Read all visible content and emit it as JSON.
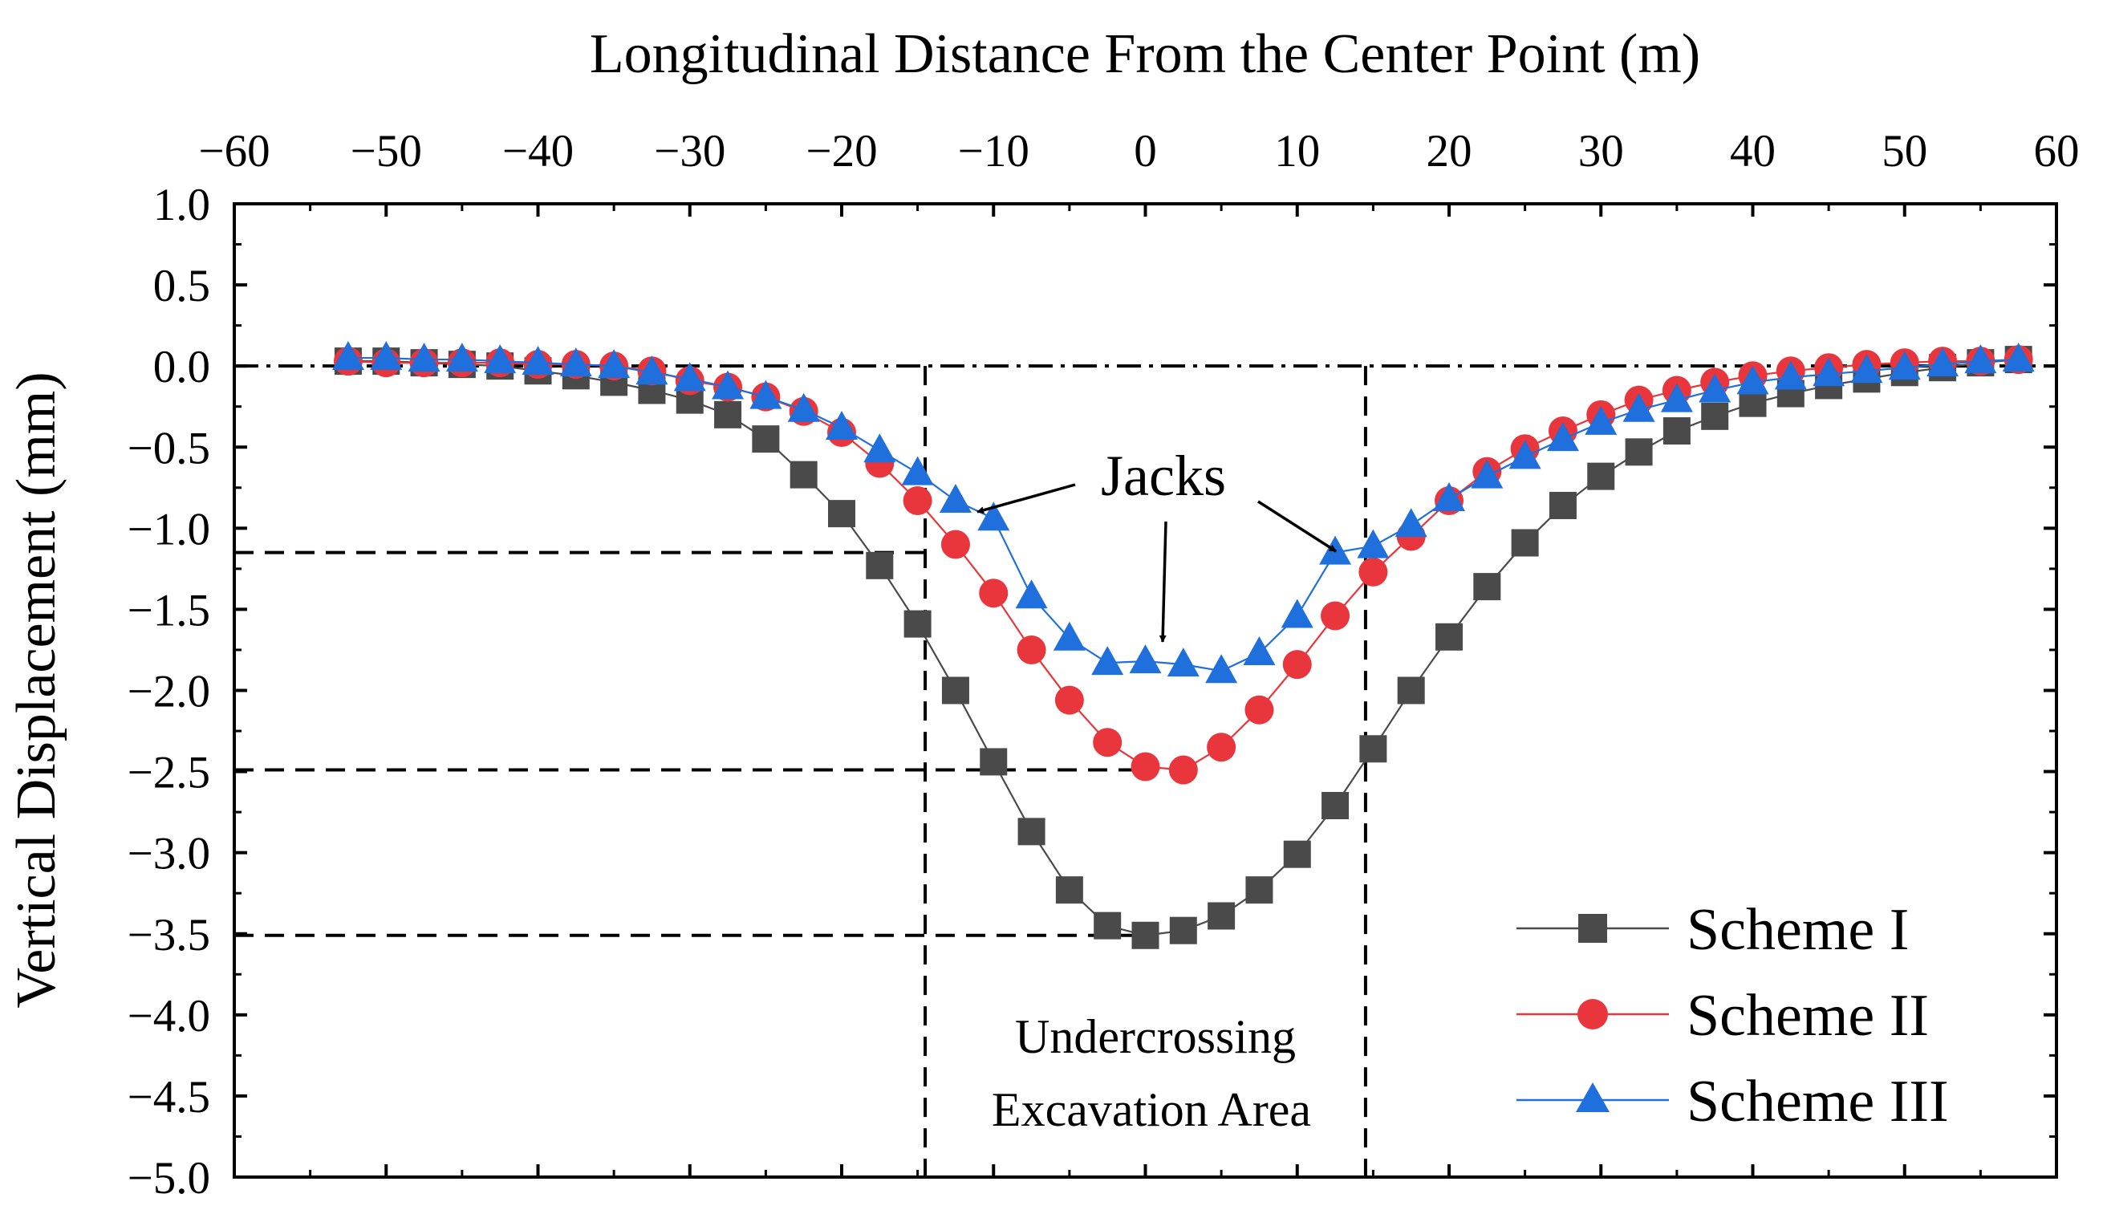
{
  "chart_data": {
    "type": "line",
    "title": "",
    "xlabel": "Longitudinal Distance From the Center Point (m)",
    "ylabel": "Vertical Displacement (mm)",
    "xlim": [
      -60,
      60
    ],
    "ylim": [
      -5.0,
      1.0
    ],
    "x_ticks": [
      "−60",
      "−50",
      "−40",
      "−30",
      "−20",
      "−10",
      "0",
      "10",
      "20",
      "30",
      "40",
      "50",
      "60"
    ],
    "y_ticks": [
      "1.0",
      "0.5",
      "0.0",
      "−0.5",
      "−1.0",
      "−1.5",
      "−2.0",
      "−2.5",
      "−3.0",
      "−3.5",
      "−4.0",
      "−4.5",
      "−5.0"
    ],
    "x_tick_values": [
      -60,
      -50,
      -40,
      -30,
      -20,
      -10,
      0,
      10,
      20,
      30,
      40,
      50,
      60
    ],
    "y_tick_values": [
      1.0,
      0.5,
      0.0,
      -0.5,
      -1.0,
      -1.5,
      -2.0,
      -2.5,
      -3.0,
      -3.5,
      -4.0,
      -4.5,
      -5.0
    ],
    "x": [
      -52.5,
      -50,
      -47.5,
      -45,
      -42.5,
      -40,
      -37.5,
      -35,
      -32.5,
      -30,
      -27.5,
      -25,
      -22.5,
      -20,
      -17.5,
      -15,
      -12.5,
      -10,
      -7.5,
      -5,
      -2.5,
      0,
      2.5,
      5,
      7.5,
      10,
      12.5,
      15,
      17.5,
      20,
      22.5,
      25,
      27.5,
      30,
      32.5,
      35,
      37.5,
      40,
      42.5,
      45,
      47.5,
      50,
      52.5,
      55,
      57.5
    ],
    "series": [
      {
        "name": "Scheme I",
        "color": "#4a4a4a",
        "marker": "square",
        "values": [
          0.03,
          0.03,
          0.02,
          0.01,
          0.0,
          -0.03,
          -0.06,
          -0.1,
          -0.15,
          -0.21,
          -0.3,
          -0.45,
          -0.67,
          -0.91,
          -1.23,
          -1.59,
          -2.0,
          -2.44,
          -2.87,
          -3.23,
          -3.45,
          -3.51,
          -3.48,
          -3.39,
          -3.23,
          -3.01,
          -2.71,
          -2.36,
          -2.0,
          -1.67,
          -1.36,
          -1.09,
          -0.86,
          -0.68,
          -0.53,
          -0.4,
          -0.31,
          -0.23,
          -0.17,
          -0.12,
          -0.08,
          -0.04,
          -0.01,
          0.02,
          0.04
        ]
      },
      {
        "name": "Scheme II",
        "color": "#e8363c",
        "marker": "circle",
        "values": [
          0.03,
          0.02,
          0.02,
          0.02,
          0.02,
          0.01,
          0.01,
          0.0,
          -0.03,
          -0.09,
          -0.13,
          -0.19,
          -0.28,
          -0.41,
          -0.6,
          -0.83,
          -1.1,
          -1.4,
          -1.75,
          -2.06,
          -2.32,
          -2.47,
          -2.49,
          -2.35,
          -2.12,
          -1.84,
          -1.54,
          -1.27,
          -1.05,
          -0.83,
          -0.65,
          -0.51,
          -0.4,
          -0.3,
          -0.21,
          -0.15,
          -0.1,
          -0.06,
          -0.03,
          -0.01,
          0.01,
          0.02,
          0.03,
          0.03,
          0.04
        ]
      },
      {
        "name": "Scheme III",
        "color": "#1f6fdc",
        "marker": "triangle",
        "values": [
          0.05,
          0.05,
          0.04,
          0.04,
          0.03,
          0.02,
          0.01,
          0.0,
          -0.04,
          -0.08,
          -0.13,
          -0.19,
          -0.27,
          -0.38,
          -0.52,
          -0.66,
          -0.83,
          -0.94,
          -1.42,
          -1.68,
          -1.83,
          -1.82,
          -1.84,
          -1.88,
          -1.77,
          -1.54,
          -1.15,
          -1.11,
          -0.98,
          -0.82,
          -0.68,
          -0.56,
          -0.45,
          -0.35,
          -0.27,
          -0.21,
          -0.15,
          -0.1,
          -0.07,
          -0.05,
          -0.03,
          -0.01,
          0.01,
          0.03,
          0.04
        ]
      }
    ],
    "reference_lines": {
      "zero_line_y": 0.0,
      "vertical_x": [
        -14.5,
        14.5
      ],
      "horizontal_y": [
        -1.15,
        -2.49,
        -3.51
      ]
    },
    "annotations": {
      "jacks_label": "Jacks",
      "area_label_line1": "Undercrossing",
      "area_label_line2": "Excavation Area"
    },
    "legend_position": "bottom-right",
    "grid": false
  }
}
